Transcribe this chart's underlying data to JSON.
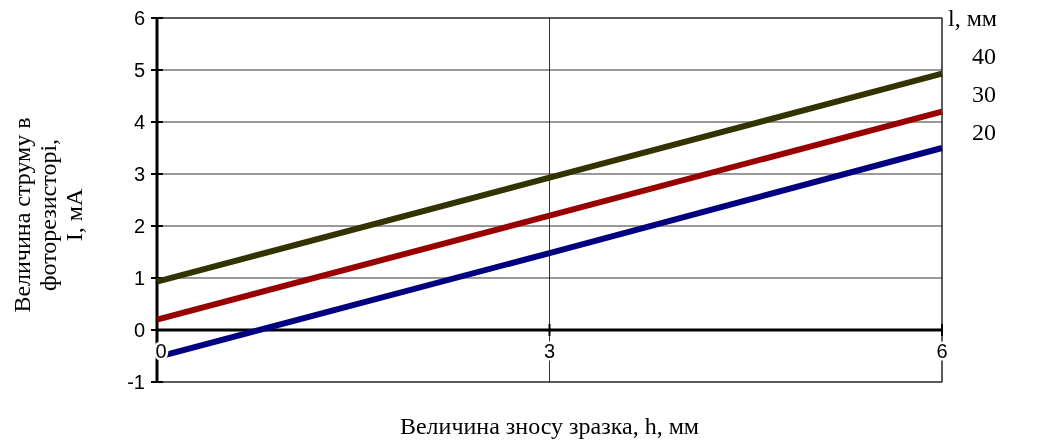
{
  "chart_data": {
    "type": "line",
    "xlabel": "Величина зносу зразка, h, мм",
    "ylabel": "Величина струму в фоторезисторі, I, мА",
    "legend_title": "l, мм",
    "x": [
      0,
      3,
      6
    ],
    "series": [
      {
        "name": "40",
        "color": "#333300",
        "values": [
          0.93,
          2.93,
          4.93
        ]
      },
      {
        "name": "30",
        "color": "#990000",
        "values": [
          0.2,
          2.2,
          4.2
        ]
      },
      {
        "name": "20",
        "color": "#000080",
        "values": [
          -0.52,
          1.48,
          3.5
        ]
      }
    ],
    "xlim": [
      0,
      6
    ],
    "xticks": [
      0,
      3,
      6
    ],
    "ylim": [
      -1,
      6
    ],
    "yticks": [
      -1,
      0,
      1,
      2,
      3,
      4,
      5,
      6
    ],
    "grid": true,
    "legend": "right",
    "line_style": "solid"
  }
}
